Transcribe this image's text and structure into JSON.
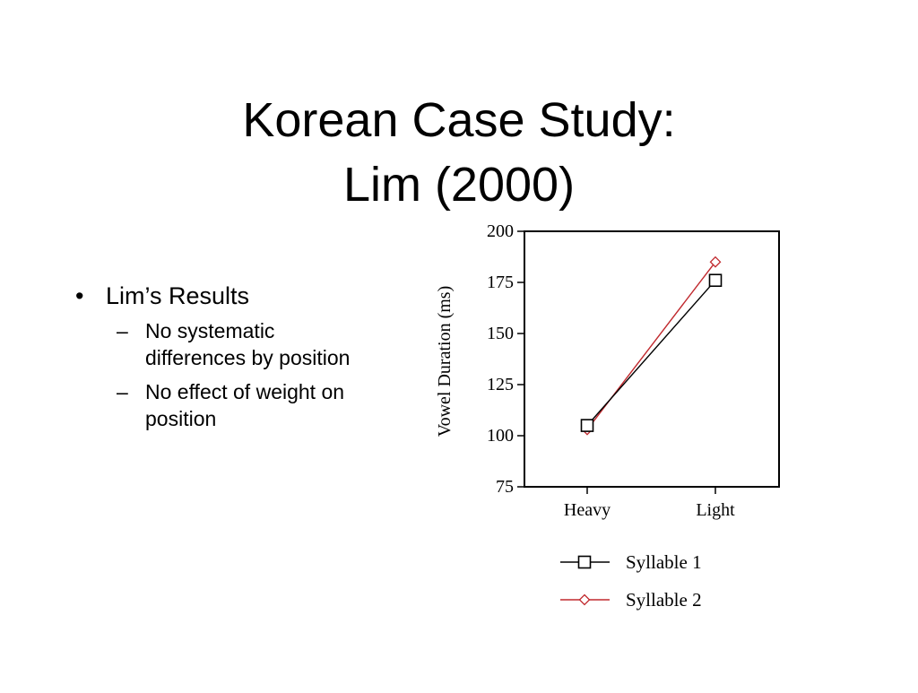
{
  "slide": {
    "title_line1": "Korean Case Study:",
    "title_line2": "Lim (2000)"
  },
  "bullets": {
    "main": "Lim’s Results",
    "main_marker": "•",
    "sub_marker": "–",
    "sub": [
      "No systematic differences by position",
      "No effect of weight on position"
    ]
  },
  "chart_data": {
    "type": "line",
    "categories": [
      "Heavy",
      "Light"
    ],
    "series": [
      {
        "name": "Syllable 1",
        "values": [
          105,
          176
        ],
        "color": "#000000",
        "marker": "square"
      },
      {
        "name": "Syllable 2",
        "values": [
          103,
          185
        ],
        "color": "#c0282d",
        "marker": "diamond"
      }
    ],
    "title": "",
    "xlabel": "",
    "ylabel": "Vowel Duration (ms)",
    "ylim": [
      75,
      200
    ],
    "yticks": [
      75,
      100,
      125,
      150,
      175,
      200
    ],
    "grid": false,
    "legend": "bottom"
  }
}
